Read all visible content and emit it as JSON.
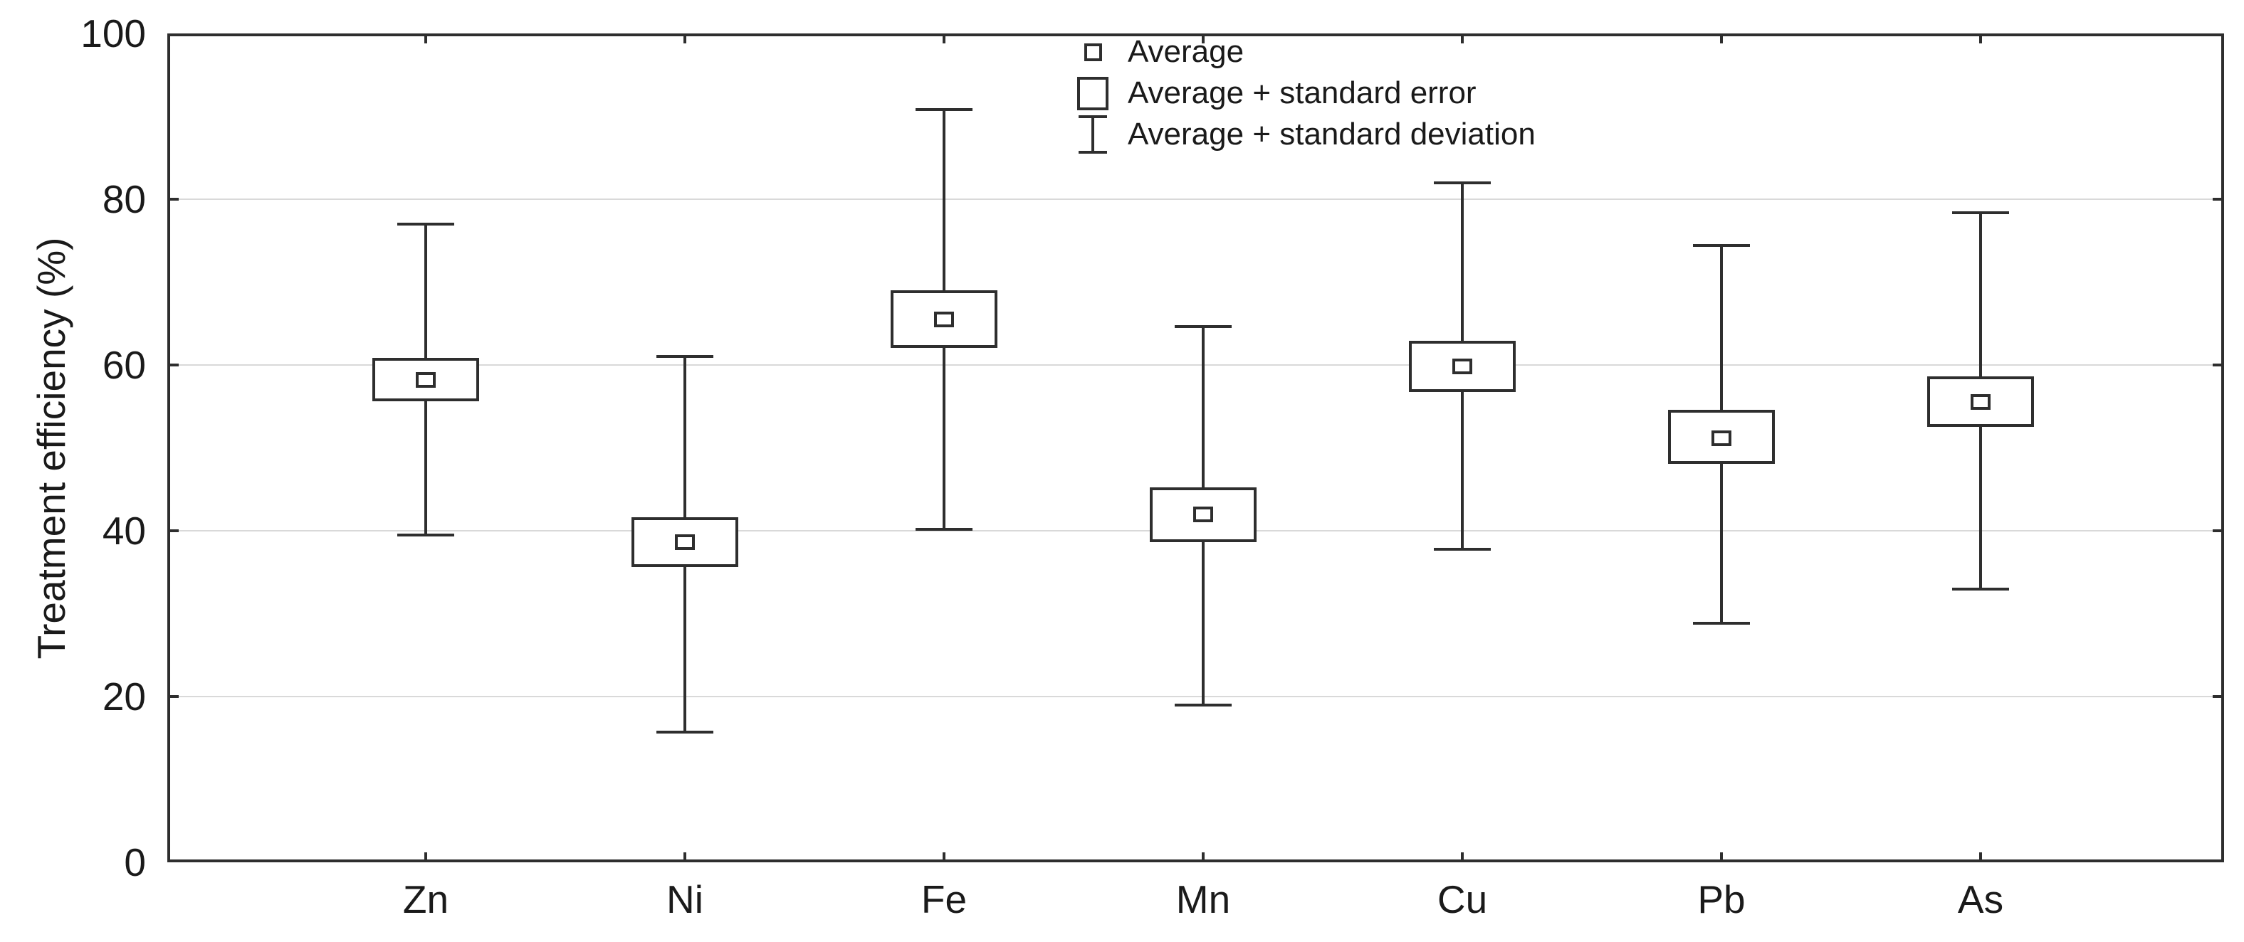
{
  "colors": {
    "line": "#2e2e2e",
    "grid": "#d9d9d9",
    "background": "#ffffff",
    "text": "#1a1a1a"
  },
  "chart_data": {
    "type": "box",
    "title": "",
    "xlabel": "",
    "ylabel": "Treatment efficiency (%)",
    "ylim": [
      0,
      100
    ],
    "yticks": [
      0,
      20,
      40,
      60,
      80,
      100
    ],
    "grid": "horizontal-at-inner-yticks",
    "frame": true,
    "legend_position": "top-center",
    "categories": [
      "Zn",
      "Ni",
      "Fe",
      "Mn",
      "Cu",
      "Pb",
      "As"
    ],
    "boxes": [
      {
        "category": "Zn",
        "average": 58.2,
        "se_low": 55.6,
        "se_high": 60.9,
        "sd_low": 39.5,
        "sd_high": 77.0
      },
      {
        "category": "Ni",
        "average": 38.6,
        "se_low": 35.6,
        "se_high": 41.6,
        "sd_low": 15.7,
        "sd_high": 61.0
      },
      {
        "category": "Fe",
        "average": 65.5,
        "se_low": 62.1,
        "se_high": 69.0,
        "sd_low": 40.2,
        "sd_high": 90.8
      },
      {
        "category": "Mn",
        "average": 42.0,
        "se_low": 38.6,
        "se_high": 45.2,
        "sd_low": 19.0,
        "sd_high": 64.6
      },
      {
        "category": "Cu",
        "average": 59.8,
        "se_low": 56.7,
        "se_high": 62.9,
        "sd_low": 37.8,
        "sd_high": 82.0
      },
      {
        "category": "Pb",
        "average": 51.2,
        "se_low": 48.1,
        "se_high": 54.6,
        "sd_low": 28.8,
        "sd_high": 74.4
      },
      {
        "category": "As",
        "average": 55.5,
        "se_low": 52.5,
        "se_high": 58.6,
        "sd_low": 33.0,
        "sd_high": 78.4
      }
    ],
    "legend": {
      "items": [
        {
          "marker": "small-square",
          "label": "Average"
        },
        {
          "marker": "rectangle",
          "label": "Average + standard error"
        },
        {
          "marker": "error-bar",
          "label": "Average + standard deviation"
        }
      ]
    }
  }
}
